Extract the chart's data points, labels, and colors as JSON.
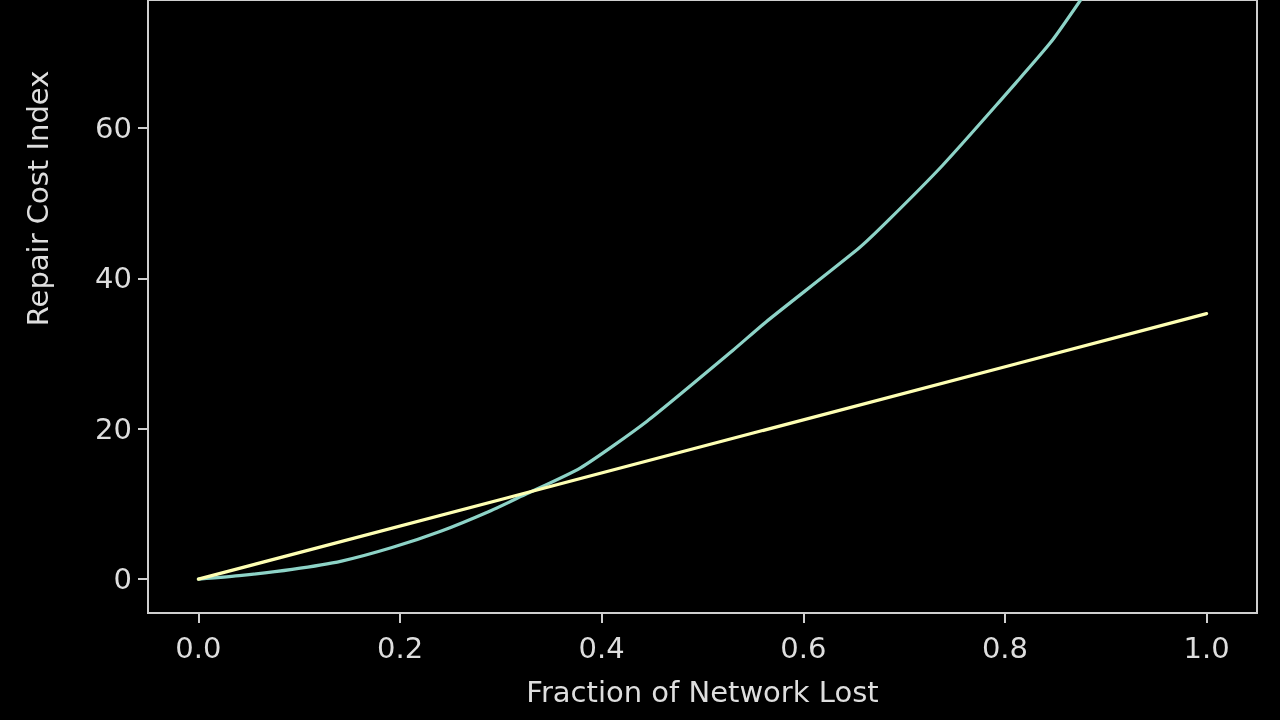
{
  "chart_data": {
    "type": "line",
    "xlabel": "Fraction of Network Lost",
    "ylabel": "Repair Cost Index",
    "xlim": [
      -0.05,
      1.05
    ],
    "xticks": [
      {
        "value": 0,
        "label": "0.0"
      },
      0.2,
      0.4,
      0.6,
      0.8,
      {
        "value": 1,
        "label": "1.0"
      }
    ],
    "ylim": [
      -4.5,
      77
    ],
    "yticks": [
      0,
      20,
      40,
      60
    ],
    "series": [
      {
        "color": "#8dd3c7",
        "x": [
          0,
          0.043,
          0.093,
          0.142,
          0.192,
          0.241,
          0.29,
          0.32,
          0.379,
          0.445,
          0.53,
          0.563,
          0.655,
          0.685,
          0.738,
          0.792,
          0.845,
          0.875
        ],
        "values": [
          0,
          0.5,
          1.3,
          2.4,
          4.2,
          6.4,
          9.1,
          11.0,
          14.8,
          21.0,
          30.4,
          34.2,
          44.0,
          47.8,
          55.0,
          63.1,
          71.3,
          77
        ]
      },
      {
        "color": "#feffb3",
        "x": [
          0,
          1
        ],
        "values": [
          0,
          35.3
        ]
      }
    ]
  }
}
